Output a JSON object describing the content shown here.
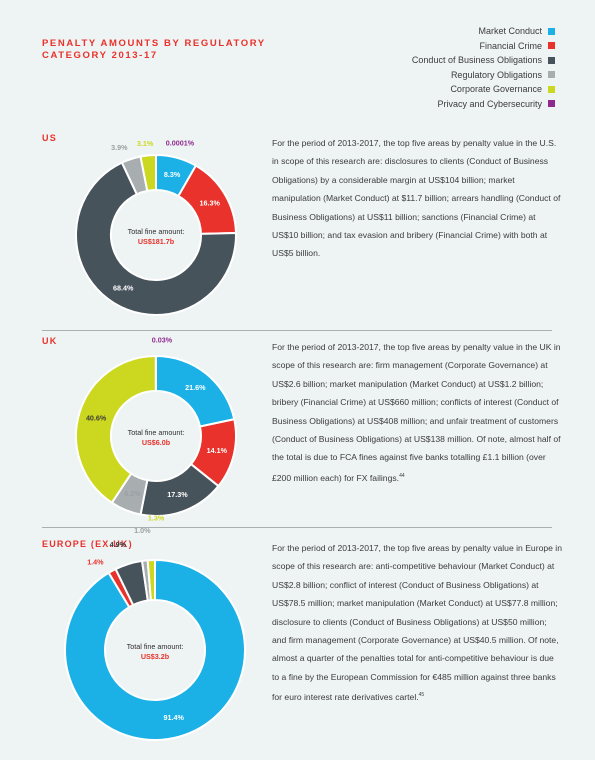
{
  "title": {
    "line1": "PENALTY AMOUNTS BY REGULATORY",
    "line2": "CATEGORY 2013-17"
  },
  "legend": [
    {
      "label": "Market Conduct",
      "color": "#1bb1e7"
    },
    {
      "label": "Financial Crime",
      "color": "#e8322b"
    },
    {
      "label": "Conduct of Business Obligations",
      "color": "#47535b"
    },
    {
      "label": "Regulatory Obligations",
      "color": "#a8adb0"
    },
    {
      "label": "Corporate Governance",
      "color": "#ccd81f"
    },
    {
      "label": "Privacy and Cybersecurity",
      "color": "#8e2a8f"
    }
  ],
  "regions": [
    {
      "name": "US",
      "center_label": "Total fine amount:",
      "center_value": "US$181.7b",
      "description": "For the period of 2013-2017, the top five areas by penalty value in the U.S. in scope of this research are: disclosures to clients (Conduct of Business Obligations) by a considerable margin at US$104 billion; market manipulation (Market Conduct) at $11.7 billion; arrears handling (Conduct of Business Obligations) at US$11 billion; sanctions (Financial Crime) at US$10 billion; and tax evasion and bribery (Financial Crime) with both at US$5 billion.",
      "footnote": ""
    },
    {
      "name": "UK",
      "center_label": "Total fine amount:",
      "center_value": "US$6.0b",
      "description": "For the period of 2013-2017, the top five areas by penalty value in the UK in scope of this research are: firm management (Corporate Governance) at US$2.6 billion; market manipulation (Market Conduct) at US$1.2 billion; bribery (Financial Crime) at US$660 million; conflicts of interest (Conduct of Business Obligations) at US$408 million; and unfair treatment of customers (Conduct of Business Obligations) at US$138 million. Of note, almost half of the total is due to FCA fines against five banks totalling £1.1 billion (over £200 million each) for FX failings.",
      "footnote": "44"
    },
    {
      "name": "EUROPE (EX.UK)",
      "center_label": "Total fine amount:",
      "center_value": "US$3.2b",
      "description": "For the period of 2013-2017, the top five areas by penalty value in Europe in scope of this research are: anti-competitive behaviour (Market Conduct) at US$2.8 billion; conflict of interest (Conduct of Business Obligations) at US$78.5 million; market manipulation (Market Conduct) at US$77.8 million; disclosure to clients (Conduct of Business Obligations) at US$50 million; and firm management (Corporate Governance) at US$40.5 million. Of note, almost a quarter of the penalties total for anti-competitive behaviour is due to a fine by the European Commission for €485 million against three banks for euro interest rate derivatives cartel.",
      "footnote": "45"
    }
  ],
  "chart_data": [
    {
      "type": "pie",
      "title": "US",
      "series": [
        {
          "name": "Market Conduct",
          "value": 8.3,
          "label": "8.3%"
        },
        {
          "name": "Financial Crime",
          "value": 16.3,
          "label": "16.3%"
        },
        {
          "name": "Conduct of Business Obligations",
          "value": 68.4,
          "label": "68.4%"
        },
        {
          "name": "Regulatory Obligations",
          "value": 3.9,
          "label": "3.9%"
        },
        {
          "name": "Corporate Governance",
          "value": 3.1,
          "label": "3.1%"
        },
        {
          "name": "Privacy and Cybersecurity",
          "value": 0.0001,
          "label": "0.0001%"
        }
      ]
    },
    {
      "type": "pie",
      "title": "UK",
      "series": [
        {
          "name": "Market Conduct",
          "value": 21.6,
          "label": "21.6%"
        },
        {
          "name": "Financial Crime",
          "value": 14.1,
          "label": "14.1%"
        },
        {
          "name": "Conduct of Business Obligations",
          "value": 17.3,
          "label": "17.3%"
        },
        {
          "name": "Regulatory Obligations",
          "value": 6.2,
          "label": "6.2%"
        },
        {
          "name": "Corporate Governance",
          "value": 40.6,
          "label": "40.6%"
        },
        {
          "name": "Privacy and Cybersecurity",
          "value": 0.03,
          "label": "0.03%"
        }
      ]
    },
    {
      "type": "pie",
      "title": "EUROPE (EX.UK)",
      "series": [
        {
          "name": "Market Conduct",
          "value": 91.4,
          "label": "91.4%"
        },
        {
          "name": "Financial Crime",
          "value": 1.4,
          "label": "1.4%"
        },
        {
          "name": "Conduct of Business Obligations",
          "value": 4.9,
          "label": "4.9%"
        },
        {
          "name": "Regulatory Obligations",
          "value": 1.0,
          "label": "1.0%"
        },
        {
          "name": "Corporate Governance",
          "value": 1.3,
          "label": "1.3%"
        }
      ]
    }
  ]
}
